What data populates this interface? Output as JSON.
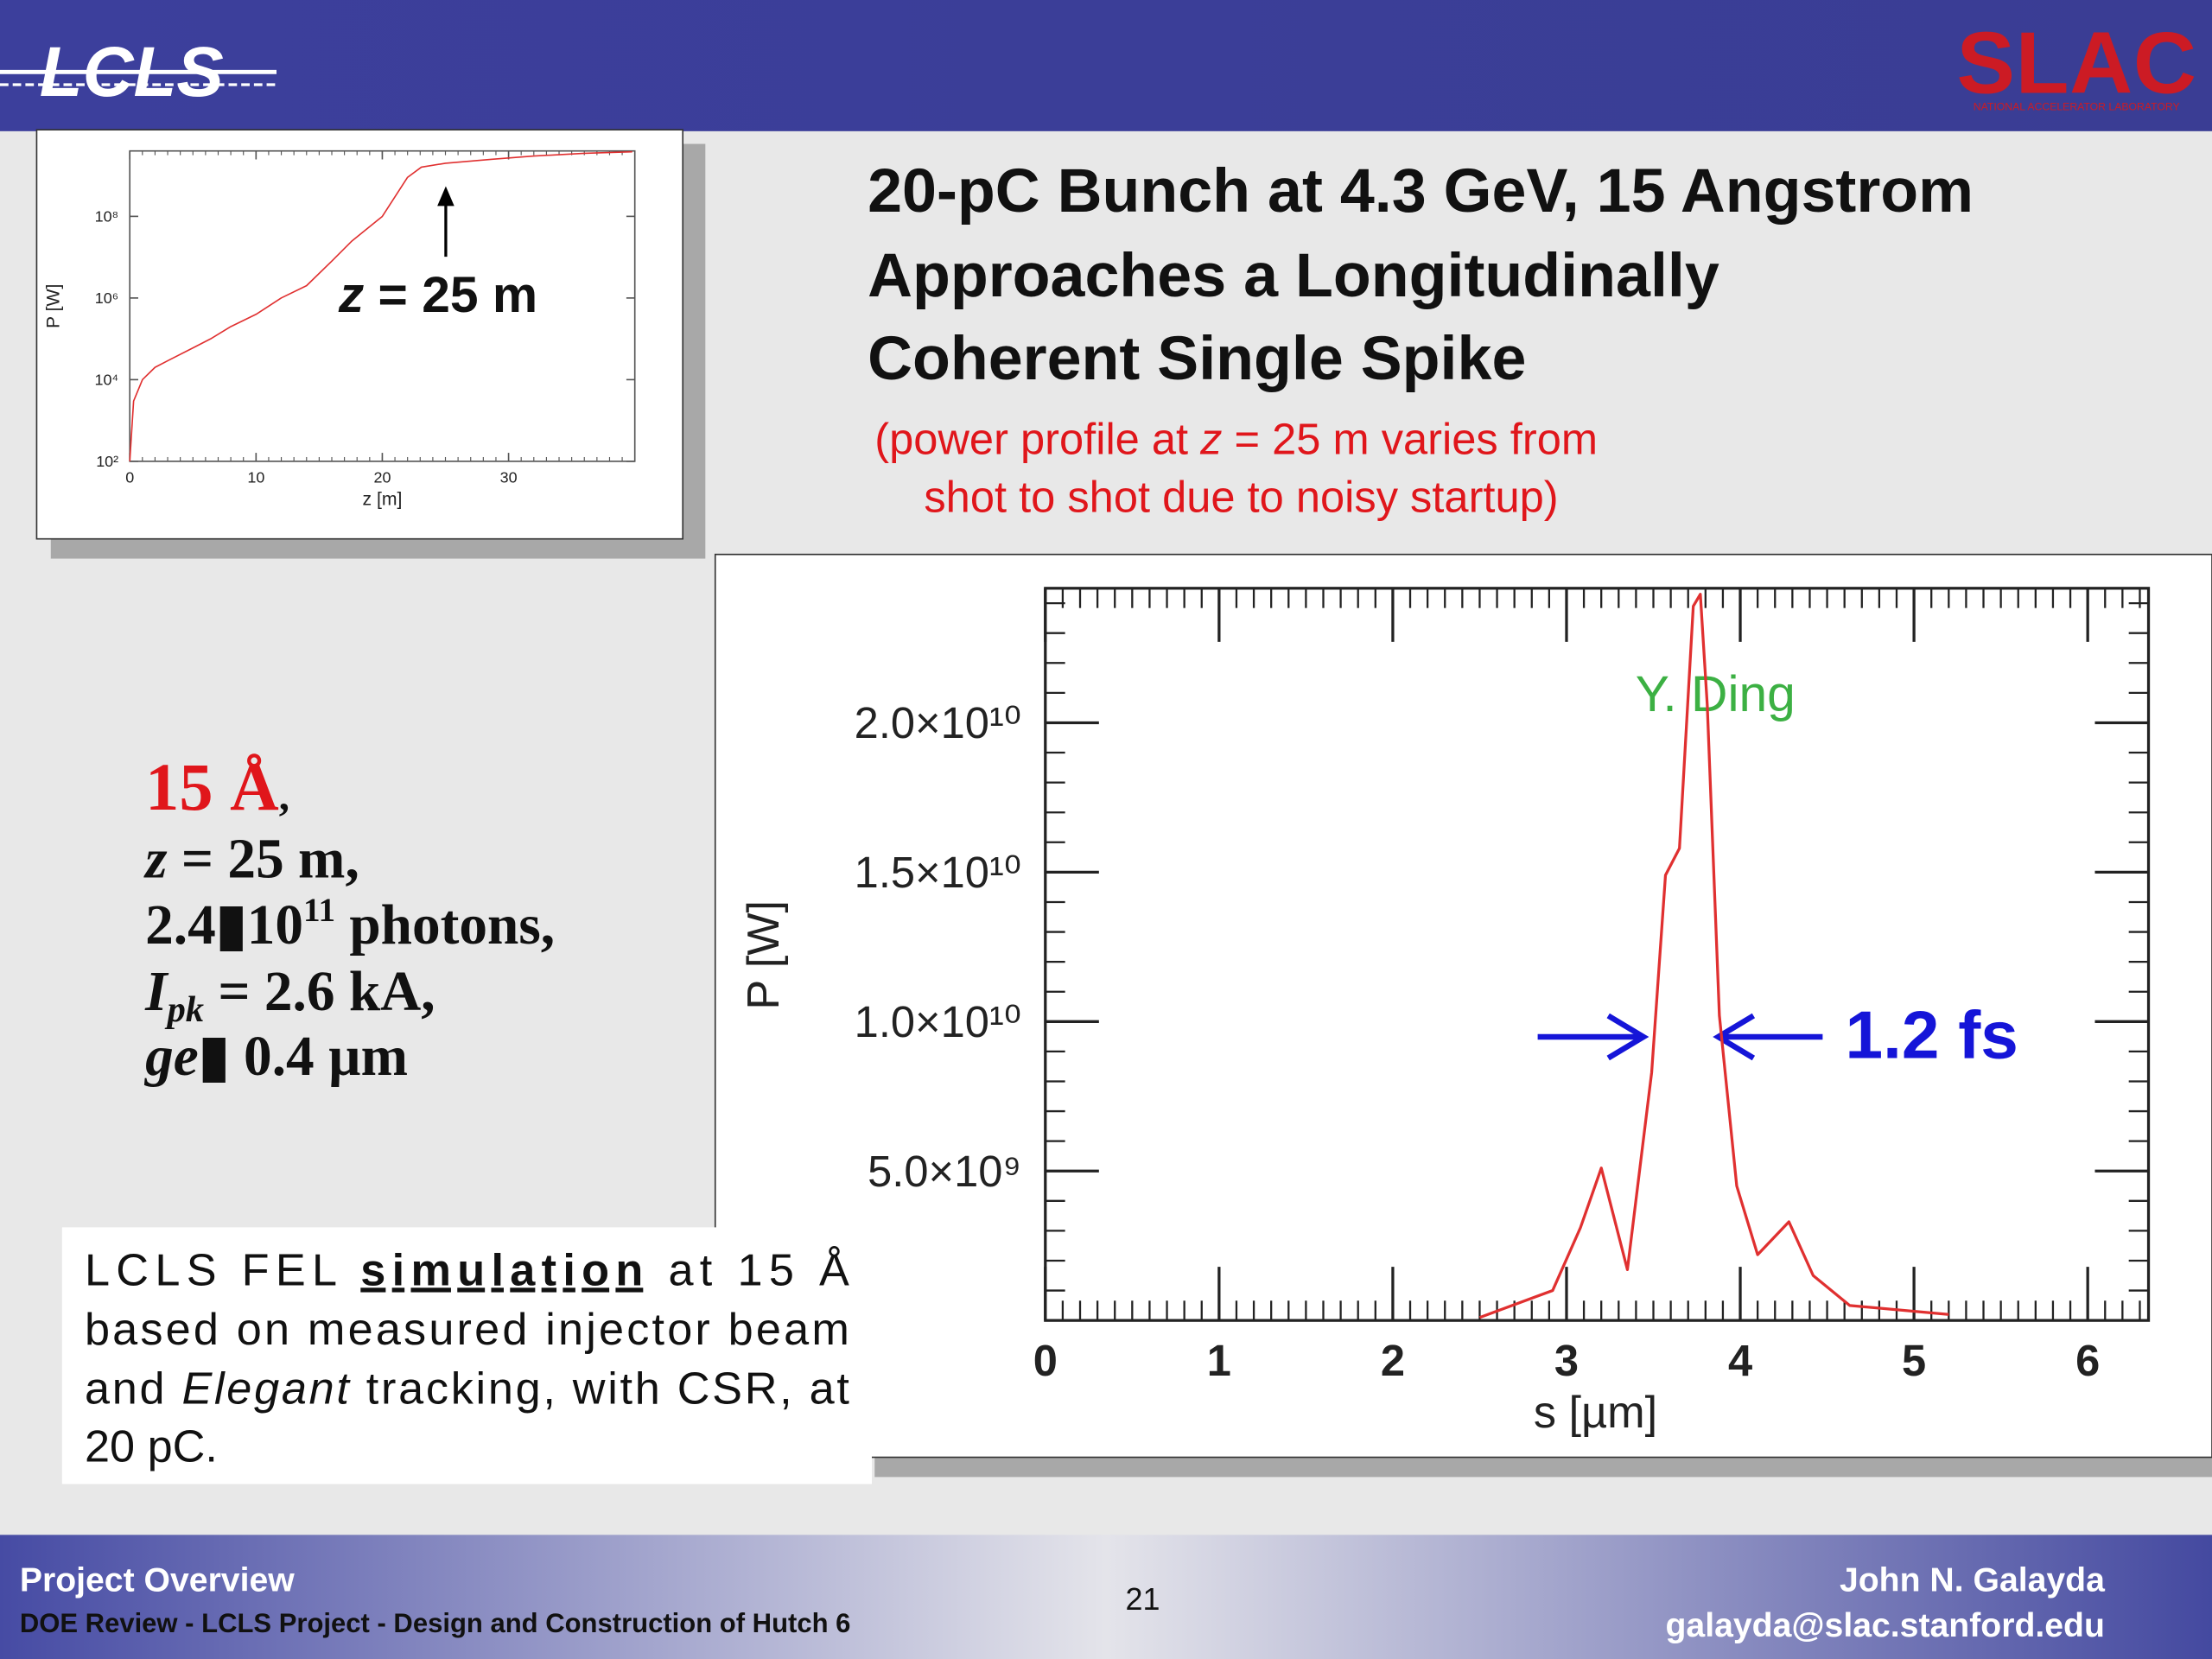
{
  "header": {
    "logo_left": "LCLS",
    "logo_right": "SLAC",
    "logo_right_sub": "NATIONAL ACCELERATOR LABORATORY"
  },
  "title": [
    "20-pC Bunch at 4.3 GeV, 15 Angstrom",
    "Approaches a Longitudinally",
    "Coherent Single Spike"
  ],
  "subtitle": [
    [
      "(power profile at ",
      "z",
      " = 25 m varies from"
    ],
    [
      "shot to shot due to noisy startup)"
    ]
  ],
  "params": [
    [
      "15 Å",
      ","
    ],
    [
      "z",
      " = 25 m,"
    ],
    [
      "2.4▮10",
      "11",
      " photons,"
    ],
    [
      "I",
      "pk",
      " = 2.6 kA,"
    ],
    [
      "ge",
      "▮",
      " 0.4 µm"
    ]
  ],
  "note": [
    [
      "LCLS FEL ",
      "simulation",
      " at 15 Å"
    ],
    [
      "based on measured injector beam"
    ],
    [
      "and ",
      "Elegant",
      " tracking, with CSR, at"
    ],
    [
      "20 pC."
    ]
  ],
  "footer": {
    "left_title": "Project Overview",
    "left_sub": "DOE Review - LCLS Project - Design and Construction of Hutch 6",
    "page": "21",
    "author": "John N. Galayda",
    "email": "galayda@slac.stanford.edu"
  },
  "chart_data": [
    {
      "type": "line",
      "xlabel": "z [m]",
      "ylabel": "P [W]",
      "log_y": true,
      "color": "#e03030",
      "annotation": [
        "z",
        " = 25 m"
      ],
      "xlim": [
        0,
        40
      ],
      "xticks": [
        0,
        10,
        20,
        30
      ],
      "ylim": [
        100,
        4000000000
      ],
      "yticks": [
        {
          "value": 100,
          "label": "10²"
        },
        {
          "value": 10000,
          "label": "10⁴"
        },
        {
          "value": 1000000,
          "label": "10⁶"
        },
        {
          "value": 100000000,
          "label": "10⁸"
        }
      ],
      "x": [
        0,
        0.3,
        1,
        2,
        3.1,
        5,
        6.4,
        8,
        10,
        12,
        14,
        16,
        17.6,
        20,
        22,
        23.1,
        25,
        28.7,
        32,
        36,
        39.8
      ],
      "values": [
        100,
        3000,
        10000,
        20000,
        30000,
        60000,
        100000,
        200000,
        400000,
        1000000,
        2000000,
        8000000,
        25000000,
        100000000,
        900000000,
        1600000000,
        2000000000,
        2500000000,
        3000000000,
        3500000000,
        3800000000
      ]
    },
    {
      "type": "line",
      "xlabel": "s [µm]",
      "ylabel": "P [W]",
      "log_y": false,
      "color": "#e03030",
      "annotation": "Y. Ding",
      "width_label": "1.2 fs",
      "xlim": [
        0,
        6.35
      ],
      "xticks": [
        0,
        1,
        2,
        3,
        4,
        5,
        6
      ],
      "ylim": [
        0,
        24500000000
      ],
      "yticks": [
        {
          "value": 5000000000,
          "label": "5.0×10⁹"
        },
        {
          "value": 10000000000,
          "label": "1.0×10¹⁰"
        },
        {
          "value": 15000000000,
          "label": "1.5×10¹⁰"
        },
        {
          "value": 20000000000,
          "label": "2.0×10¹⁰"
        }
      ],
      "x": [
        2.5,
        2.92,
        3.08,
        3.2,
        3.35,
        3.49,
        3.57,
        3.65,
        3.73,
        3.77,
        3.81,
        3.88,
        3.98,
        4.1,
        4.28,
        4.42,
        4.63,
        5.2
      ],
      "values": [
        100000000,
        1000000000,
        3100000000,
        5100000000,
        1700000000,
        8300000000,
        14900000000,
        15800000000,
        23900000000,
        24300000000,
        20600000000,
        10200000000,
        4500000000,
        2200000000,
        3300000000,
        1500000000,
        500000000,
        200000000
      ]
    }
  ]
}
